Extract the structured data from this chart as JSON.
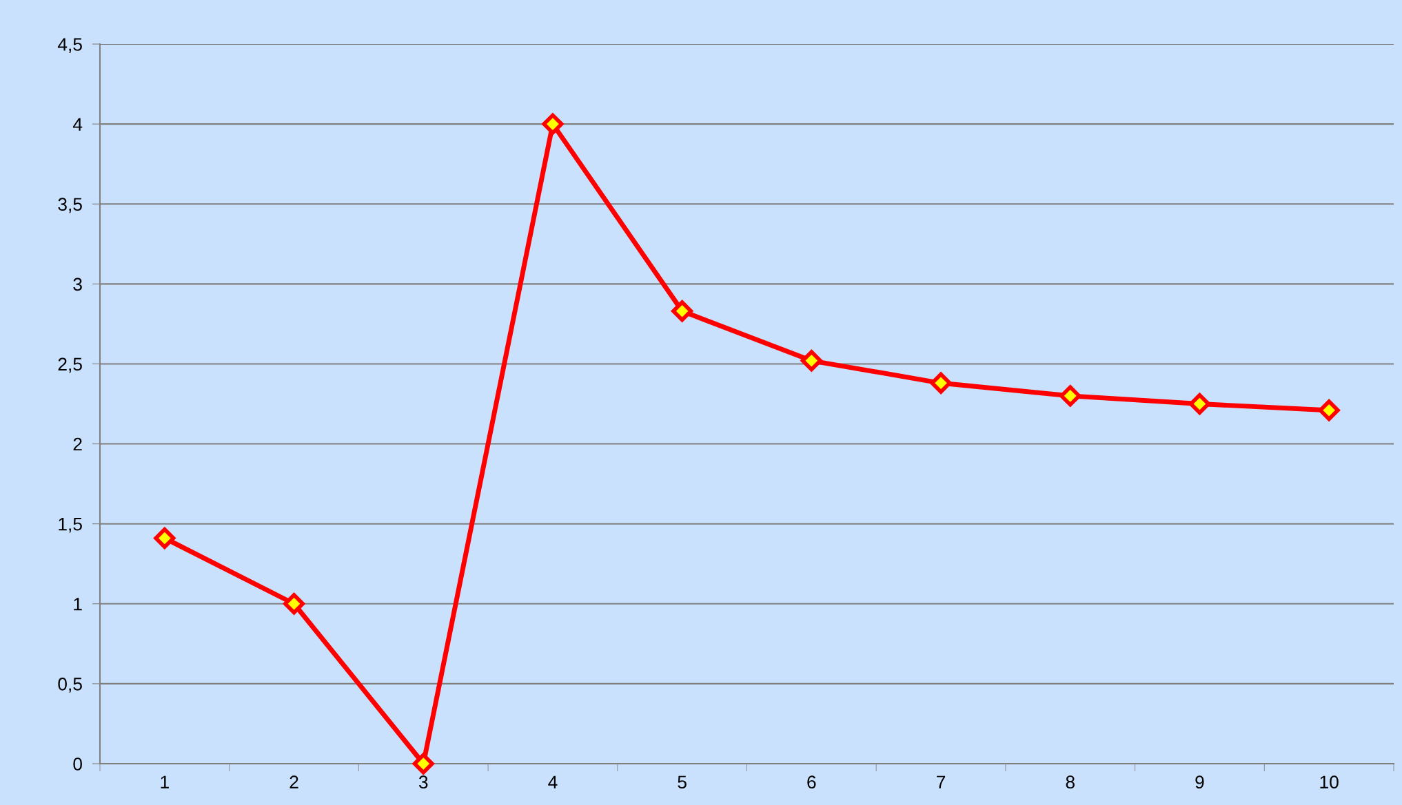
{
  "chart_data": {
    "type": "line",
    "categories": [
      "1",
      "2",
      "3",
      "4",
      "5",
      "6",
      "7",
      "8",
      "9",
      "10"
    ],
    "series": [
      {
        "color": "#ff0000",
        "values": [
          1.41,
          1.0,
          0,
          4.0,
          2.83,
          2.52,
          2.38,
          2.3,
          2.25,
          2.21
        ]
      }
    ],
    "ylim": [
      0,
      4.5
    ],
    "yticks": [
      0,
      {
        "value": 0.5,
        "label": "0,5"
      },
      1,
      {
        "value": 1.5,
        "label": "1,5"
      },
      2,
      {
        "value": 2.5,
        "label": "2,5"
      },
      3,
      {
        "value": 3.5,
        "label": "3,5"
      },
      4,
      {
        "value": 4.5,
        "label": "4,5"
      }
    ],
    "grid": "y",
    "marker": "diamond",
    "line_style": "solid"
  }
}
